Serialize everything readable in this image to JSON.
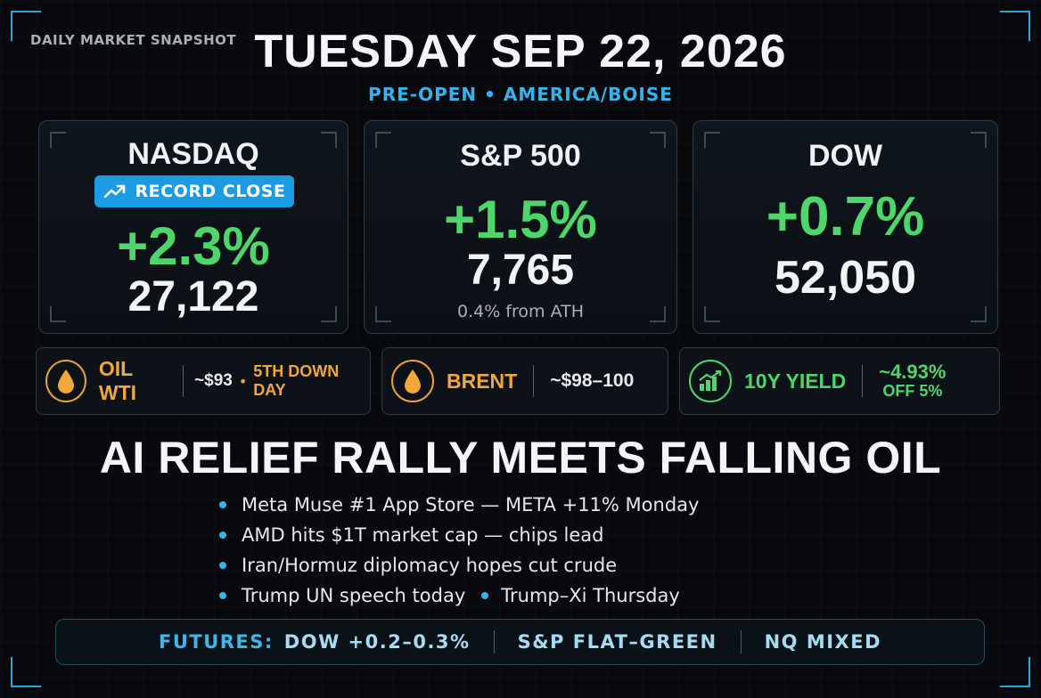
{
  "header": {
    "kicker": "DAILY MARKET SNAPSHOT",
    "title": "TUESDAY SEP 22, 2026",
    "subtitle": "PRE-OPEN • AMERICA/BOISE"
  },
  "indices": [
    {
      "name": "NASDAQ",
      "badge": "RECORD CLOSE",
      "change": "+2.3%",
      "value": "27,122"
    },
    {
      "name": "S&P 500",
      "change": "+1.5%",
      "value": "7,765",
      "note": "0.4% from ATH"
    },
    {
      "name": "DOW",
      "change": "+0.7%",
      "value": "52,050"
    }
  ],
  "commodities": [
    {
      "icon": "oil-drop-icon",
      "label": "OIL WTI",
      "value": "~$93",
      "sep": "•",
      "extra": "5TH DOWN DAY"
    },
    {
      "icon": "oil-drop-icon",
      "label": "BRENT",
      "value": "~$98–100"
    },
    {
      "icon": "bar-chart-up-icon",
      "label": "10Y YIELD",
      "value": "~4.93%",
      "extra": "OFF 5%"
    }
  ],
  "headline": "AI RELIEF RALLY MEETS FALLING OIL",
  "bullets": [
    "Meta Muse #1 App Store — META +11% Monday",
    "AMD hits $1T market cap — chips lead",
    "Iran/Hormuz diplomacy hopes cut crude",
    "Trump UN speech today",
    "Trump–Xi Thursday"
  ],
  "futures": {
    "label": "FUTURES:",
    "items": [
      "DOW +0.2–0.3%",
      "S&P FLAT–GREEN",
      "NQ MIXED"
    ]
  },
  "colors": {
    "accent": "#35b4ec",
    "positive": "#4ed66b",
    "oil": "#f0a83a",
    "badge": "#1b9ce2"
  }
}
